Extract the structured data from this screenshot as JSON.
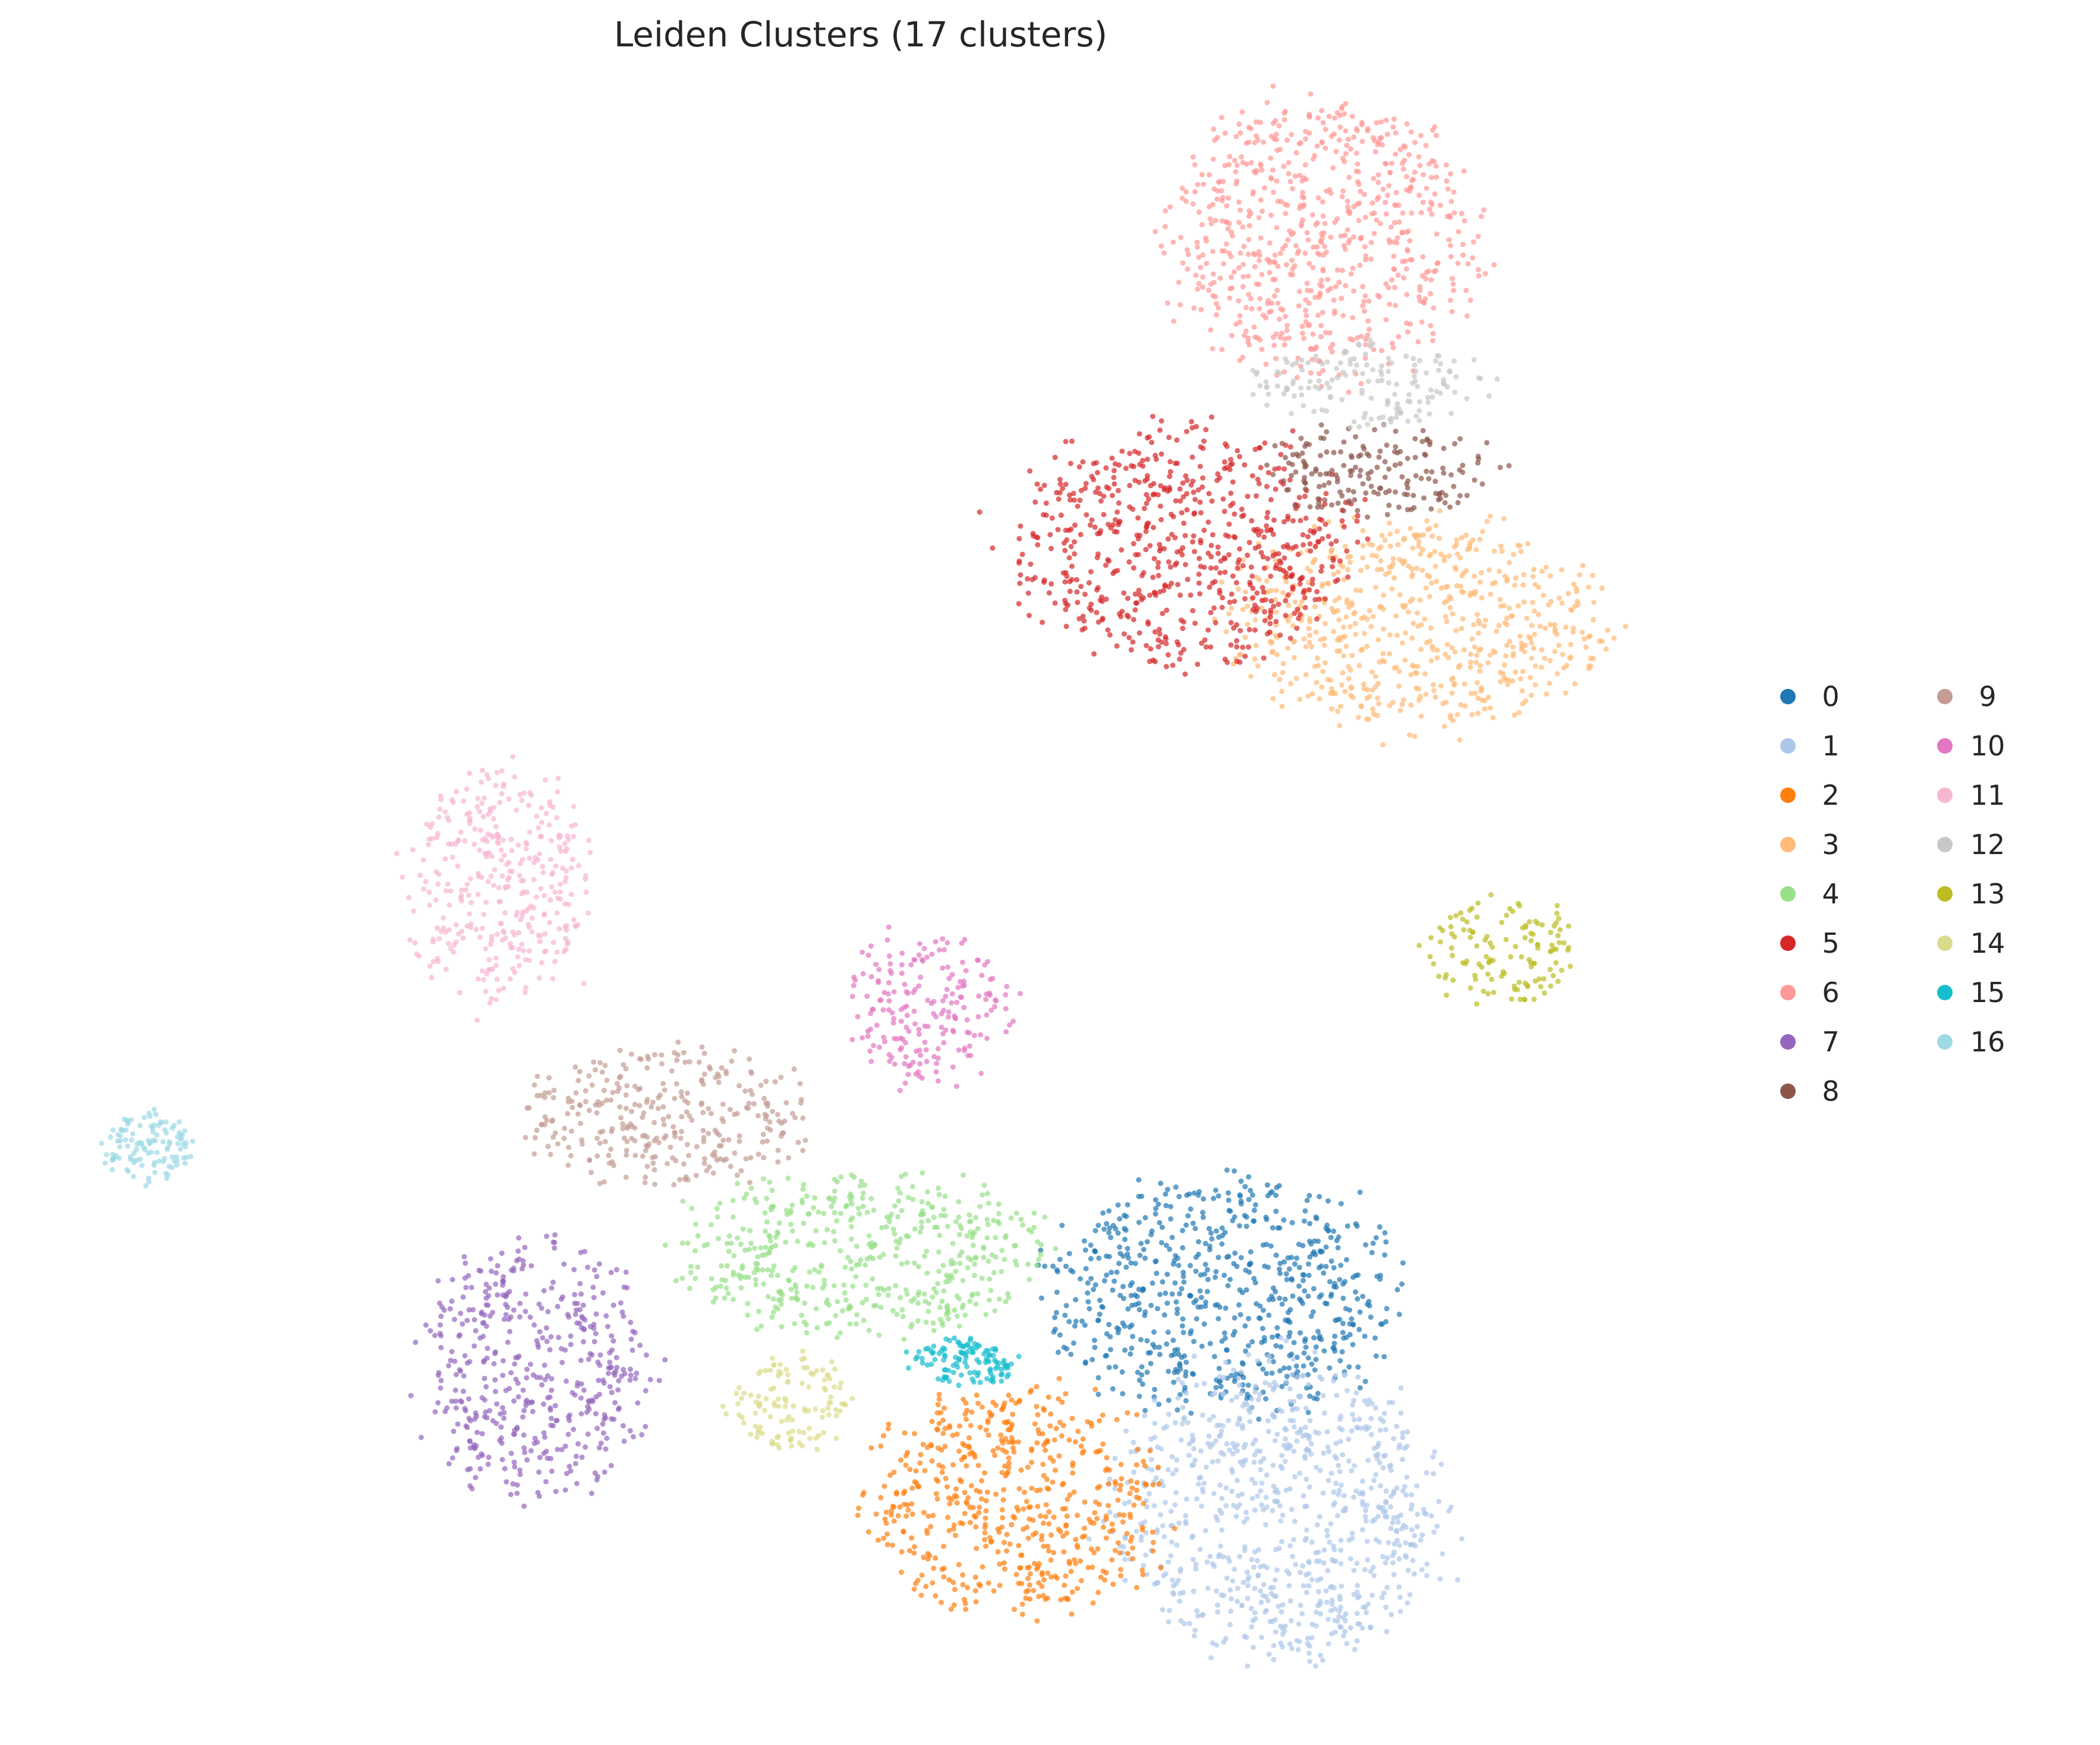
{
  "chart_data": {
    "type": "scatter",
    "title": "Leiden Clusters (17 clusters)",
    "xlabel": "",
    "ylabel": "",
    "axes_visible": false,
    "grid": false,
    "legend": {
      "placement": "right, outside plot",
      "columns": 2
    },
    "series": [
      {
        "name": "0",
        "color": "#1f77b4",
        "region": [
          2060,
          2180,
          300,
          200
        ]
      },
      {
        "name": "1",
        "color": "#aec7e8",
        "region": [
          2150,
          2540,
          280,
          260
        ]
      },
      {
        "name": "2",
        "color": "#ff7f0e",
        "region": [
          1710,
          2530,
          250,
          200
        ]
      },
      {
        "name": "3",
        "color": "#ffbb78",
        "region": [
          2380,
          1050,
          320,
          180
        ]
      },
      {
        "name": "4",
        "color": "#98df8a",
        "region": [
          1450,
          2110,
          320,
          140
        ]
      },
      {
        "name": "5",
        "color": "#d62728",
        "region": [
          1990,
          920,
          290,
          200
        ]
      },
      {
        "name": "6",
        "color": "#ff9896",
        "region": [
          2230,
          400,
          270,
          230
        ]
      },
      {
        "name": "7",
        "color": "#9467bd",
        "region": [
          900,
          2300,
          190,
          220
        ]
      },
      {
        "name": "8",
        "color": "#8c564b",
        "region": [
          2320,
          790,
          200,
          80
        ]
      },
      {
        "name": "9",
        "color": "#c49c94",
        "region": [
          1120,
          1880,
          240,
          120
        ]
      },
      {
        "name": "10",
        "color": "#e377c2",
        "region": [
          1560,
          1700,
          140,
          130
        ]
      },
      {
        "name": "11",
        "color": "#f7b6d2",
        "region": [
          840,
          1490,
          160,
          200
        ]
      },
      {
        "name": "12",
        "color": "#c7c7c7",
        "region": [
          2300,
          650,
          200,
          70
        ]
      },
      {
        "name": "13",
        "color": "#bcbd22",
        "region": [
          2530,
          1600,
          130,
          90
        ]
      },
      {
        "name": "14",
        "color": "#dbdb8d",
        "region": [
          1330,
          2360,
          110,
          80
        ]
      },
      {
        "name": "15",
        "color": "#17becf",
        "region": [
          1620,
          2290,
          100,
          40
        ]
      },
      {
        "name": "16",
        "color": "#9edae5",
        "region": [
          250,
          1930,
          80,
          60
        ]
      }
    ]
  }
}
